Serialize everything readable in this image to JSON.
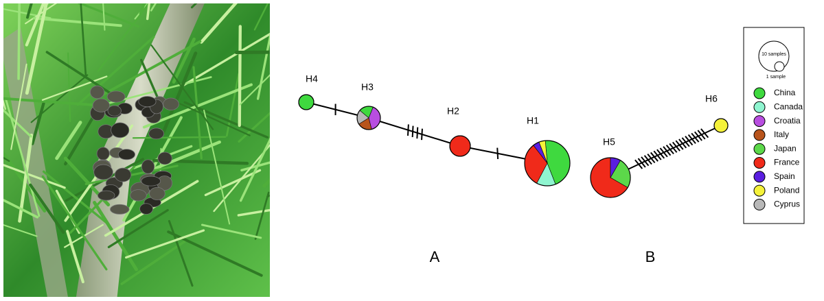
{
  "network_a": {
    "label": "A",
    "nodes": [
      {
        "label": "H4",
        "counts": [
          1,
          0,
          0,
          0,
          0,
          0,
          0,
          0,
          0
        ]
      },
      {
        "label": "H3",
        "counts": [
          1,
          0,
          2,
          1,
          0,
          0,
          0,
          0,
          1
        ]
      },
      {
        "label": "H2",
        "counts": [
          0,
          0,
          0,
          0,
          0,
          2,
          0,
          0,
          0
        ]
      },
      {
        "label": "H1",
        "counts": [
          10,
          3,
          0,
          0,
          0,
          7,
          1,
          1,
          0
        ]
      }
    ],
    "mutations": [
      1,
      4,
      1
    ]
  },
  "network_b": {
    "label": "B",
    "nodes": [
      {
        "label": "H5",
        "counts": [
          0,
          0,
          0,
          0,
          3,
          8,
          1,
          0,
          0
        ]
      },
      {
        "label": "H6",
        "counts": [
          0,
          0,
          0,
          0,
          0,
          0,
          0,
          1,
          0
        ]
      }
    ],
    "mutations": [
      22
    ]
  },
  "legend": {
    "size_labels": [
      "10 samples",
      "1 sample"
    ],
    "items": [
      {
        "label": "China",
        "color": "#3fd93f"
      },
      {
        "label": "Canada",
        "color": "#8ff5d0"
      },
      {
        "label": "Croatia",
        "color": "#b84ee0"
      },
      {
        "label": "Italy",
        "color": "#b8541c"
      },
      {
        "label": "Japan",
        "color": "#5cd84a"
      },
      {
        "label": "France",
        "color": "#f02a1a"
      },
      {
        "label": "Spain",
        "color": "#5a1ee0"
      },
      {
        "label": "Poland",
        "color": "#f5f23a"
      },
      {
        "label": "Cyprus",
        "color": "#b8b8b8"
      }
    ]
  }
}
